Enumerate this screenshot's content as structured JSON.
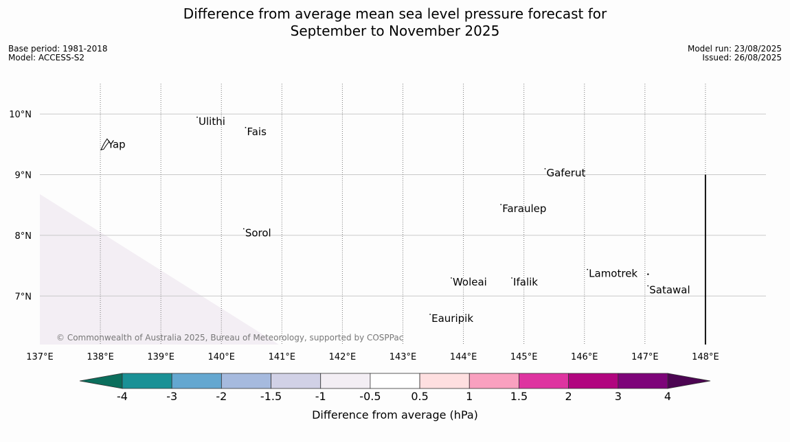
{
  "title": {
    "line1": "Difference from average mean sea level pressure forecast for",
    "line2": "September to November 2025"
  },
  "meta": {
    "base_period": "Base period: 1981-2018",
    "model": "Model: ACCESS-S2",
    "model_run": "Model run: 23/08/2025",
    "issued": "Issued: 26/08/2025"
  },
  "map": {
    "lon_range": [
      137,
      149
    ],
    "lat_range": [
      6.2,
      10.5
    ],
    "lon_ticks": [
      {
        "lon": 137,
        "label": "137°E"
      },
      {
        "lon": 138,
        "label": "138°E"
      },
      {
        "lon": 139,
        "label": "139°E"
      },
      {
        "lon": 140,
        "label": "140°E"
      },
      {
        "lon": 141,
        "label": "141°E"
      },
      {
        "lon": 142,
        "label": "142°E"
      },
      {
        "lon": 143,
        "label": "143°E"
      },
      {
        "lon": 144,
        "label": "144°E"
      },
      {
        "lon": 145,
        "label": "145°E"
      },
      {
        "lon": 146,
        "label": "146°E"
      },
      {
        "lon": 147,
        "label": "147°E"
      },
      {
        "lon": 148,
        "label": "148°E"
      }
    ],
    "lat_ticks": [
      {
        "lat": 10,
        "label": "10°N"
      },
      {
        "lat": 9,
        "label": "9°N"
      },
      {
        "lat": 8,
        "label": "8°N"
      },
      {
        "lat": 7,
        "label": "7°N"
      }
    ],
    "places": [
      {
        "name": "Yap",
        "lon": 138.1,
        "lat": 9.5
      },
      {
        "name": "Ulithi",
        "lon": 139.6,
        "lat": 9.88
      },
      {
        "name": "Fais",
        "lon": 140.4,
        "lat": 9.71
      },
      {
        "name": "Gaferut",
        "lon": 145.35,
        "lat": 9.03
      },
      {
        "name": "Faraulep",
        "lon": 144.62,
        "lat": 8.44
      },
      {
        "name": "Sorol",
        "lon": 140.37,
        "lat": 8.04
      },
      {
        "name": "Lamotrek",
        "lon": 146.05,
        "lat": 7.37
      },
      {
        "name": "Woleai",
        "lon": 143.8,
        "lat": 7.23
      },
      {
        "name": "Ifalik",
        "lon": 144.8,
        "lat": 7.23
      },
      {
        "name": "Satawal",
        "lon": 147.05,
        "lat": 7.1
      },
      {
        "name": "Eauripik",
        "lon": 143.45,
        "lat": 6.63
      }
    ],
    "anomaly_region": {
      "category": "-1 to -0.5",
      "color": "#f3eef4"
    },
    "boundary_line": {
      "lon": 148,
      "lat_top": 9.0
    },
    "copyright": "© Commonwealth of Australia 2025, Bureau of Meteorology, supported by COSPPac"
  },
  "colorbar": {
    "label": "Difference from average (hPa)",
    "ticks": [
      "-4",
      "-3",
      "-2",
      "-1.5",
      "-1",
      "-0.5",
      "0.5",
      "1",
      "1.5",
      "2",
      "3",
      "4"
    ],
    "below_color": "#0b6e5c",
    "above_color": "#4c0552",
    "colors": [
      "#1a9196",
      "#64a7d0",
      "#a6bade",
      "#d1d1e6",
      "#f3eef4",
      "#ffffff",
      "#fedfe0",
      "#f9a0bf",
      "#de34a0",
      "#b1057f",
      "#7d0479"
    ]
  }
}
